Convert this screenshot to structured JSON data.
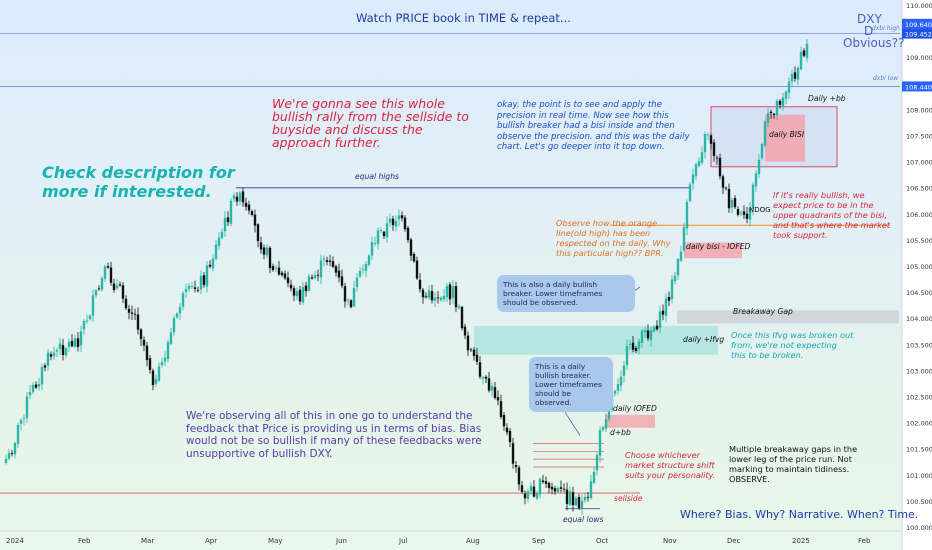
{
  "header": {
    "title": "Watch PRICE book in TIME & repeat...",
    "symbol": "DXY",
    "timeframe": "D",
    "question": "Obvious??"
  },
  "annotations": {
    "top_red": "We're gonna see this whole\nbullish rally from the sellside to\nbuyside and discuss the\napproach further.",
    "left_teal": "Check description for\nmore if interested.",
    "top_blue": "okay. the point is to see and apply the\nprecision in real time.  Now see how this\nbullish breaker had a bisi inside and then\nobserve the precision. and this was the daily\nchart. Let's go deeper into it top down.",
    "orange_note": "Observe  how the orange\nline(old high) has been\nrespected on the daily. Why\nthis particular high?? BPR.",
    "right_red": "If it's really bullish, we\nexpect price to be in the\nupper quadrants of the bisi,\nand that's where the market\ntook support.",
    "right_teal": "Once this Ifvg was broken out\nfrom, we're not expecting\nthis to be broken.",
    "purple_note": "We're observing all of this in one go to understand the\nfeedback that Price is providing us in terms of bias. Bias\nwould not be so bullish if many of these feedbacks were\nunsupportive of bullish DXY.",
    "choose_note": "Choose whichever\nmarket structure shift\nsuits your personality.",
    "multiple_note": "Multiple breakaway gaps in the\nlower leg of the price run. Not\nmarking to maintain tidiness.\nOBSERVE.",
    "bottom_right": "Where? Bias. Why? Narrative. When? Time.",
    "callout1": "This is also a daily bullish\nbreaker. Lower timeframes\nshould be observed.",
    "callout2": "This is a daily\nbullish breaker.\nLower timeframes\nshould be observed."
  },
  "labels": {
    "equal_highs": "equal highs",
    "equal_lows": "equal lows",
    "sellside": "sellside",
    "daily_bb": "Daily +bb",
    "daily_bisi": "daily BISI",
    "ndog": "NDOG",
    "daily_bisi_iofed": "daily bisi - IOFED",
    "breakaway_gap": "Breakaway Gap",
    "daily_ifvg": "daily +Ifvg",
    "daily_iofed": "daily IOFED",
    "d_bb": "d+bb",
    "dxbi_high": "dxbi high",
    "dxbi_low": "dxbi low"
  },
  "chart_data": {
    "type": "candlestick",
    "title": "Watch PRICE book in TIME & repeat...",
    "symbol": "DXY",
    "timeframe": "D",
    "y_axis": {
      "ticks": [
        "110.000",
        "109.500",
        "109.000",
        "108.500",
        "108.000",
        "107.500",
        "107.000",
        "106.500",
        "106.000",
        "105.500",
        "105.000",
        "104.500",
        "104.000",
        "103.500",
        "103.000",
        "102.500",
        "102.000",
        "101.500",
        "101.000",
        "100.500",
        "100.000"
      ],
      "range": [
        99.8,
        110.2
      ]
    },
    "x_axis": {
      "ticks": [
        "2024",
        "Feb",
        "Mar",
        "Apr",
        "May",
        "Jun",
        "Jul",
        "Aug",
        "Sep",
        "Oct",
        "Nov",
        "Dec",
        "2025",
        "Feb"
      ]
    },
    "price_labels": [
      {
        "text": "109.640",
        "value": 109.64,
        "color": "#2962ff"
      },
      {
        "text": "109.452",
        "value": 109.452,
        "color": "#1e53e5"
      },
      {
        "text": "108.440",
        "value": 108.44,
        "color": "#2962ff"
      }
    ],
    "levels": [
      {
        "name": "dxbi high",
        "value": 109.452
      },
      {
        "name": "dxbi low",
        "value": 108.44
      },
      {
        "name": "equal highs",
        "value": 106.5
      },
      {
        "name": "sellside",
        "value": 100.65
      }
    ],
    "path": [
      {
        "date": "2024-01-02",
        "close": 101.3
      },
      {
        "date": "2024-01-10",
        "close": 102.4
      },
      {
        "date": "2024-01-20",
        "close": 103.3
      },
      {
        "date": "2024-02-01",
        "close": 103.6
      },
      {
        "date": "2024-02-14",
        "close": 104.9
      },
      {
        "date": "2024-02-28",
        "close": 104.0
      },
      {
        "date": "2024-03-08",
        "close": 102.7
      },
      {
        "date": "2024-03-20",
        "close": 104.3
      },
      {
        "date": "2024-04-01",
        "close": 104.8
      },
      {
        "date": "2024-04-16",
        "close": 106.4
      },
      {
        "date": "2024-04-25",
        "close": 105.7
      },
      {
        "date": "2024-05-03",
        "close": 105.0
      },
      {
        "date": "2024-05-15",
        "close": 104.4
      },
      {
        "date": "2024-05-29",
        "close": 105.2
      },
      {
        "date": "2024-06-07",
        "close": 104.2
      },
      {
        "date": "2024-06-19",
        "close": 105.5
      },
      {
        "date": "2024-07-01",
        "close": 106.0
      },
      {
        "date": "2024-07-12",
        "close": 104.4
      },
      {
        "date": "2024-07-26",
        "close": 104.5
      },
      {
        "date": "2024-08-02",
        "close": 103.5
      },
      {
        "date": "2024-08-08",
        "close": 102.8
      },
      {
        "date": "2024-08-16",
        "close": 102.5
      },
      {
        "date": "2024-08-27",
        "close": 100.6
      },
      {
        "date": "2024-09-06",
        "close": 100.8
      },
      {
        "date": "2024-09-17",
        "close": 100.6
      },
      {
        "date": "2024-09-27",
        "close": 100.4
      },
      {
        "date": "2024-10-04",
        "close": 102.0
      },
      {
        "date": "2024-10-15",
        "close": 103.3
      },
      {
        "date": "2024-10-31",
        "close": 104.0
      },
      {
        "date": "2024-11-08",
        "close": 105.0
      },
      {
        "date": "2024-11-15",
        "close": 106.8
      },
      {
        "date": "2024-11-22",
        "close": 107.6
      },
      {
        "date": "2024-12-02",
        "close": 106.2
      },
      {
        "date": "2024-12-10",
        "close": 105.8
      },
      {
        "date": "2024-12-20",
        "close": 107.8
      },
      {
        "date": "2025-01-01",
        "close": 108.6
      },
      {
        "date": "2025-01-13",
        "close": 109.6
      }
    ]
  },
  "colors": {
    "bull_candle": "#2bb5a6",
    "bear_candle": "#111111",
    "equal_highs_line": "#4a4aa8",
    "sellside_line": "#e05566",
    "dxbi_line": "#6a8fd8",
    "ifvg_zone": "#7ed8d3",
    "bisi_zone": "#f3a3ab"
  }
}
